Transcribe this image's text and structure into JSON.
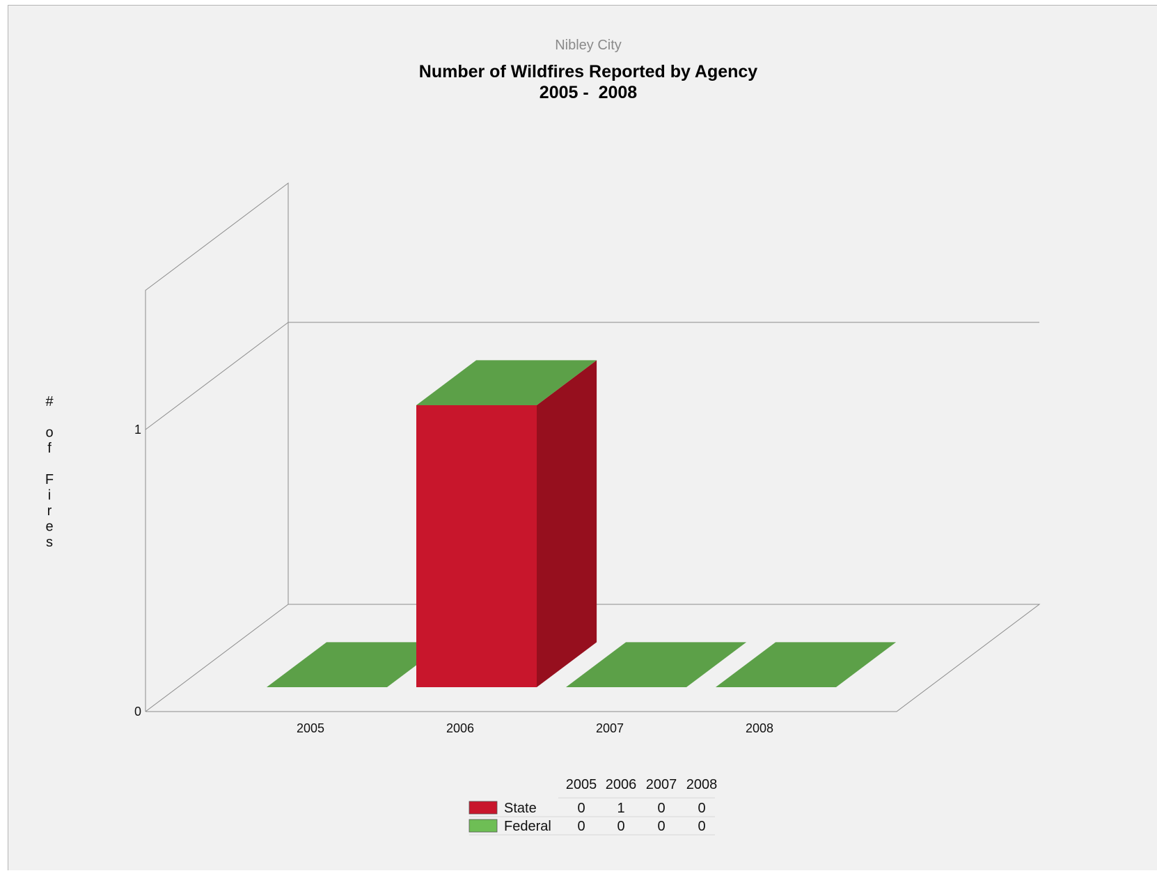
{
  "chart_data": {
    "type": "bar",
    "subtitle": "Nibley City",
    "title": "Number of Wildfires Reported by Agency",
    "title_line2": "2005 -  2008",
    "ylabel": "# of Fires",
    "xlabel": "",
    "categories": [
      "2005",
      "2006",
      "2007",
      "2008"
    ],
    "ylim": [
      0,
      1
    ],
    "yticks": [
      "0",
      "1"
    ],
    "stacked": true,
    "three_d": true,
    "grid": false,
    "legend_placement": "bottom-center table",
    "series": [
      {
        "name": "State",
        "values": [
          0,
          1,
          0,
          0
        ],
        "color": "#c8162c",
        "side_color": "#960f1e"
      },
      {
        "name": "Federal",
        "values": [
          0,
          0,
          0,
          0
        ],
        "color": "#5ca048",
        "legend_color": "#6ebe55"
      }
    ]
  }
}
